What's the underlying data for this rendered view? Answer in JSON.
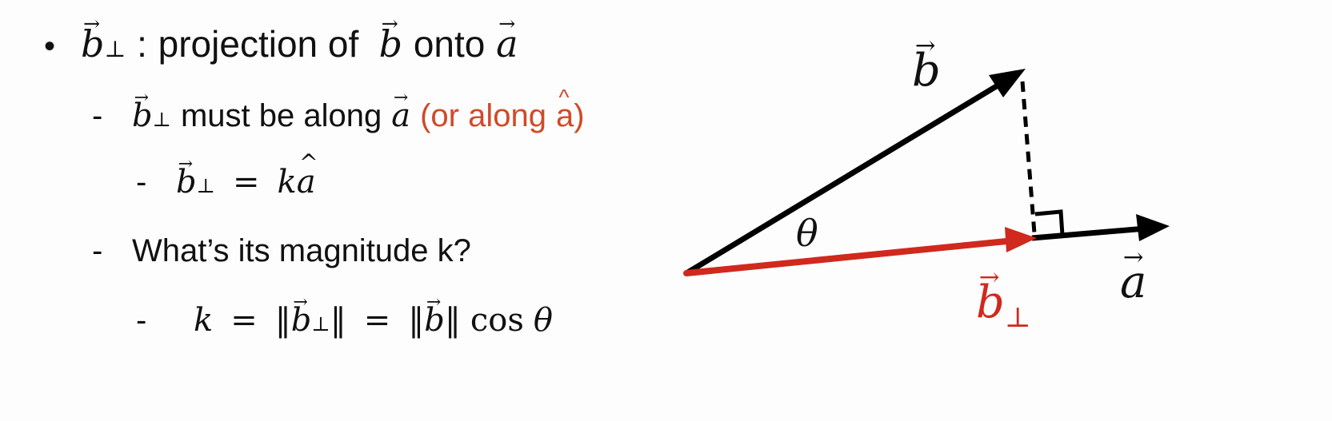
{
  "bullets": {
    "l1": {
      "marker": "•",
      "base_b": "b",
      "arrow": "→",
      "perp": "⊥",
      "sep": ":",
      "text1": "projection of",
      "text2": "onto",
      "base_a": "a"
    },
    "l2": {
      "marker": "-",
      "text1": "must be along",
      "note": "(or along",
      "note_hat_base": "a",
      "hat": "^",
      "note_close": ")"
    },
    "l3": {
      "marker": "-",
      "eq": "=",
      "k": "k",
      "a": "a"
    },
    "l4": {
      "marker": "-",
      "text": "What’s its magnitude k?"
    },
    "l5": {
      "marker": "-",
      "k": "k",
      "eq": "=",
      "norm": "‖",
      "cos": "cos",
      "theta": "θ"
    }
  },
  "diagram": {
    "label_b_base": "b",
    "label_a_base": "a",
    "label_bp_base": "b",
    "label_theta": "θ",
    "colors": {
      "vector": "#000000",
      "projection": "#d0291e"
    }
  }
}
